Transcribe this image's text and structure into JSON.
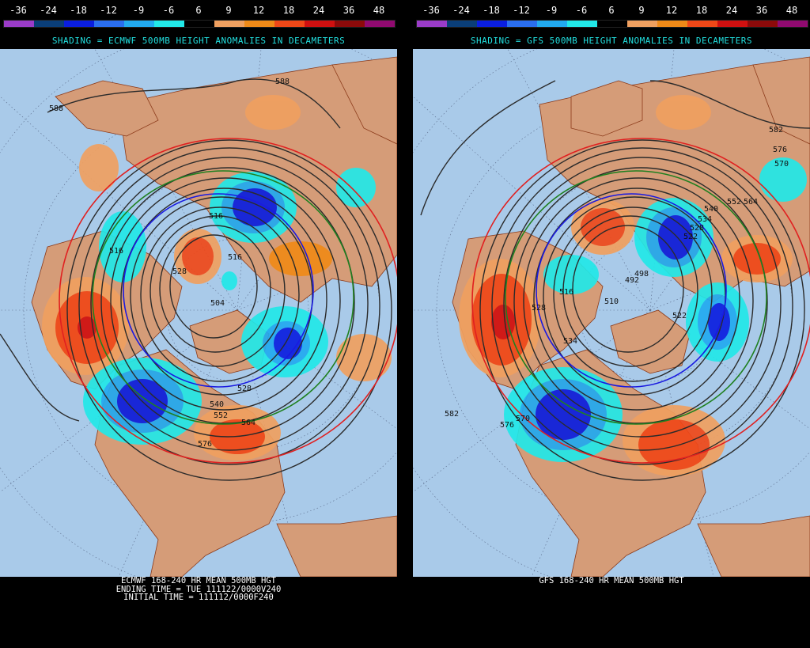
{
  "legend": {
    "values": [
      "-36",
      "-24",
      "-18",
      "-12",
      "-9",
      "-6",
      "6",
      "9",
      "12",
      "18",
      "24",
      "36",
      "48"
    ],
    "colors": [
      "#9b3cc8",
      "#0a3e78",
      "#0a1ee0",
      "#2a6ef0",
      "#22aaf0",
      "#22e8e8",
      "#000000",
      "#f0a060",
      "#f08a18",
      "#f04818",
      "#d01010",
      "#8c0a0a",
      "#900a70"
    ]
  },
  "left_panel": {
    "shading_title": "SHADING = ECMWF 500MB HEIGHT ANOMALIES IN DECAMETERS",
    "footer_lines": [
      "ECMWF 168-240 HR MEAN 500MB HGT",
      "ENDING TIME = TUE 111122/0000V240",
      "INITIAL TIME = 111112/0000F240"
    ],
    "contour_labels": [
      "588",
      "588",
      "516",
      "516",
      "528",
      "516",
      "504",
      "528",
      "540",
      "552",
      "564",
      "576"
    ]
  },
  "right_panel": {
    "shading_title": "SHADING = GFS 500MB HEIGHT ANOMALIES IN DECAMETERS",
    "footer_lines": [
      "GFS 168-240 HR MEAN 500MB HGT"
    ],
    "contour_labels": [
      "582",
      "576",
      "570",
      "552",
      "564",
      "540",
      "534",
      "528",
      "522",
      "498",
      "492",
      "510",
      "516",
      "528",
      "522",
      "534",
      "570",
      "576",
      "582"
    ]
  },
  "colors": {
    "ocean": "#a9cae9",
    "land": "#d59c78",
    "border": "#8b3a1a",
    "contour": "#2b2b2b",
    "contour_red": "#e02020",
    "contour_blue": "#1a1ae0",
    "contour_green": "#208020"
  }
}
